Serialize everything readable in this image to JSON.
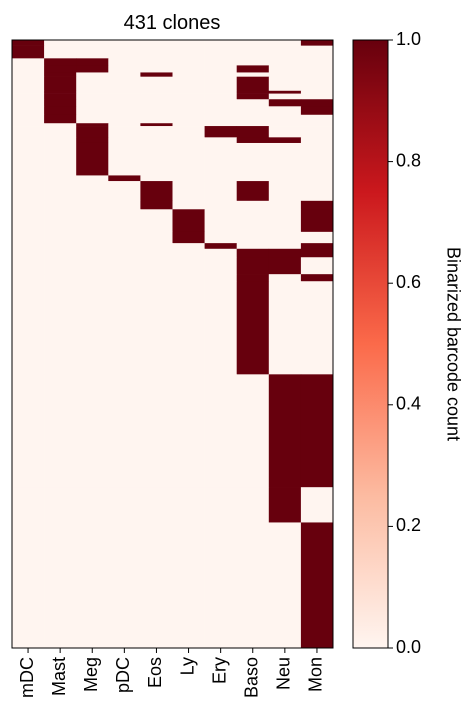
{
  "chart_data": {
    "type": "heatmap",
    "title": "431 clones",
    "columns": [
      "mDC",
      "Mast",
      "Meg",
      "pDC",
      "Eos",
      "Ly",
      "Ery",
      "Baso",
      "Neu",
      "Mon"
    ],
    "row_groups": [
      {
        "rows": 4,
        "values": [
          1,
          0,
          0,
          0,
          0,
          0,
          0,
          0,
          0,
          1
        ]
      },
      {
        "rows": 9,
        "values": [
          1,
          0,
          0,
          0,
          0,
          0,
          0,
          0,
          0,
          0
        ]
      },
      {
        "rows": 5,
        "values": [
          0,
          1,
          1,
          0,
          0,
          0,
          0,
          0,
          0,
          0
        ]
      },
      {
        "rows": 5,
        "values": [
          0,
          1,
          1,
          0,
          0,
          0,
          0,
          1,
          0,
          0
        ]
      },
      {
        "rows": 3,
        "values": [
          0,
          1,
          0,
          0,
          1,
          0,
          0,
          0,
          0,
          0
        ]
      },
      {
        "rows": 10,
        "values": [
          0,
          1,
          0,
          0,
          0,
          0,
          0,
          1,
          0,
          0
        ]
      },
      {
        "rows": 2,
        "values": [
          0,
          1,
          0,
          0,
          0,
          0,
          0,
          1,
          1,
          0
        ]
      },
      {
        "rows": 4,
        "values": [
          0,
          1,
          0,
          0,
          0,
          0,
          0,
          1,
          0,
          0
        ]
      },
      {
        "rows": 5,
        "values": [
          0,
          1,
          0,
          0,
          0,
          0,
          0,
          0,
          1,
          1
        ]
      },
      {
        "rows": 6,
        "values": [
          0,
          1,
          0,
          0,
          0,
          0,
          0,
          0,
          0,
          1
        ]
      },
      {
        "rows": 6,
        "values": [
          0,
          1,
          0,
          0,
          0,
          0,
          0,
          0,
          0,
          0
        ]
      },
      {
        "rows": 2,
        "values": [
          0,
          0,
          1,
          0,
          1,
          0,
          0,
          0,
          0,
          0
        ]
      },
      {
        "rows": 8,
        "values": [
          0,
          0,
          1,
          0,
          0,
          0,
          1,
          1,
          0,
          0
        ]
      },
      {
        "rows": 4,
        "values": [
          0,
          0,
          1,
          0,
          0,
          0,
          0,
          1,
          1,
          0
        ]
      },
      {
        "rows": 23,
        "values": [
          0,
          0,
          1,
          0,
          0,
          0,
          0,
          0,
          0,
          0
        ]
      },
      {
        "rows": 4,
        "values": [
          0,
          0,
          0,
          1,
          0,
          0,
          0,
          0,
          0,
          0
        ]
      },
      {
        "rows": 14,
        "values": [
          0,
          0,
          0,
          0,
          1,
          0,
          0,
          1,
          0,
          0
        ]
      },
      {
        "rows": 6,
        "values": [
          0,
          0,
          0,
          0,
          1,
          0,
          0,
          0,
          0,
          1
        ]
      },
      {
        "rows": 16,
        "values": [
          0,
          0,
          0,
          0,
          0,
          1,
          0,
          0,
          0,
          1
        ]
      },
      {
        "rows": 8,
        "values": [
          0,
          0,
          0,
          0,
          0,
          1,
          0,
          0,
          0,
          0
        ]
      },
      {
        "rows": 4,
        "values": [
          0,
          0,
          0,
          0,
          0,
          0,
          1,
          0,
          0,
          1
        ]
      },
      {
        "rows": 6,
        "values": [
          0,
          0,
          0,
          0,
          0,
          0,
          0,
          1,
          1,
          1
        ]
      },
      {
        "rows": 12,
        "values": [
          0,
          0,
          0,
          0,
          0,
          0,
          0,
          1,
          1,
          0
        ]
      },
      {
        "rows": 5,
        "values": [
          0,
          0,
          0,
          0,
          0,
          0,
          0,
          1,
          0,
          1
        ]
      },
      {
        "rows": 66,
        "values": [
          0,
          0,
          0,
          0,
          0,
          0,
          0,
          1,
          0,
          0
        ]
      },
      {
        "rows": 80,
        "values": [
          0,
          0,
          0,
          0,
          0,
          0,
          0,
          0,
          1,
          1
        ]
      },
      {
        "rows": 25,
        "values": [
          0,
          0,
          0,
          0,
          0,
          0,
          0,
          0,
          1,
          0
        ]
      },
      {
        "rows": 89,
        "values": [
          0,
          0,
          0,
          0,
          0,
          0,
          0,
          0,
          0,
          1
        ]
      }
    ],
    "cmap": [
      "#fff5f0",
      "#fcbba1",
      "#fb6a4a",
      "#cb181d",
      "#67000d"
    ],
    "clim": [
      0,
      1
    ],
    "colorbar_label": "Binarized barcode count",
    "colorbar_ticks": [
      {
        "value": 0,
        "label": "0.0"
      },
      {
        "value": 0.2,
        "label": "0.2"
      },
      {
        "value": 0.4,
        "label": "0.4"
      },
      {
        "value": 0.6,
        "label": "0.6"
      },
      {
        "value": 0.8,
        "label": "0.8"
      },
      {
        "value": 1,
        "label": "1.0"
      }
    ]
  }
}
